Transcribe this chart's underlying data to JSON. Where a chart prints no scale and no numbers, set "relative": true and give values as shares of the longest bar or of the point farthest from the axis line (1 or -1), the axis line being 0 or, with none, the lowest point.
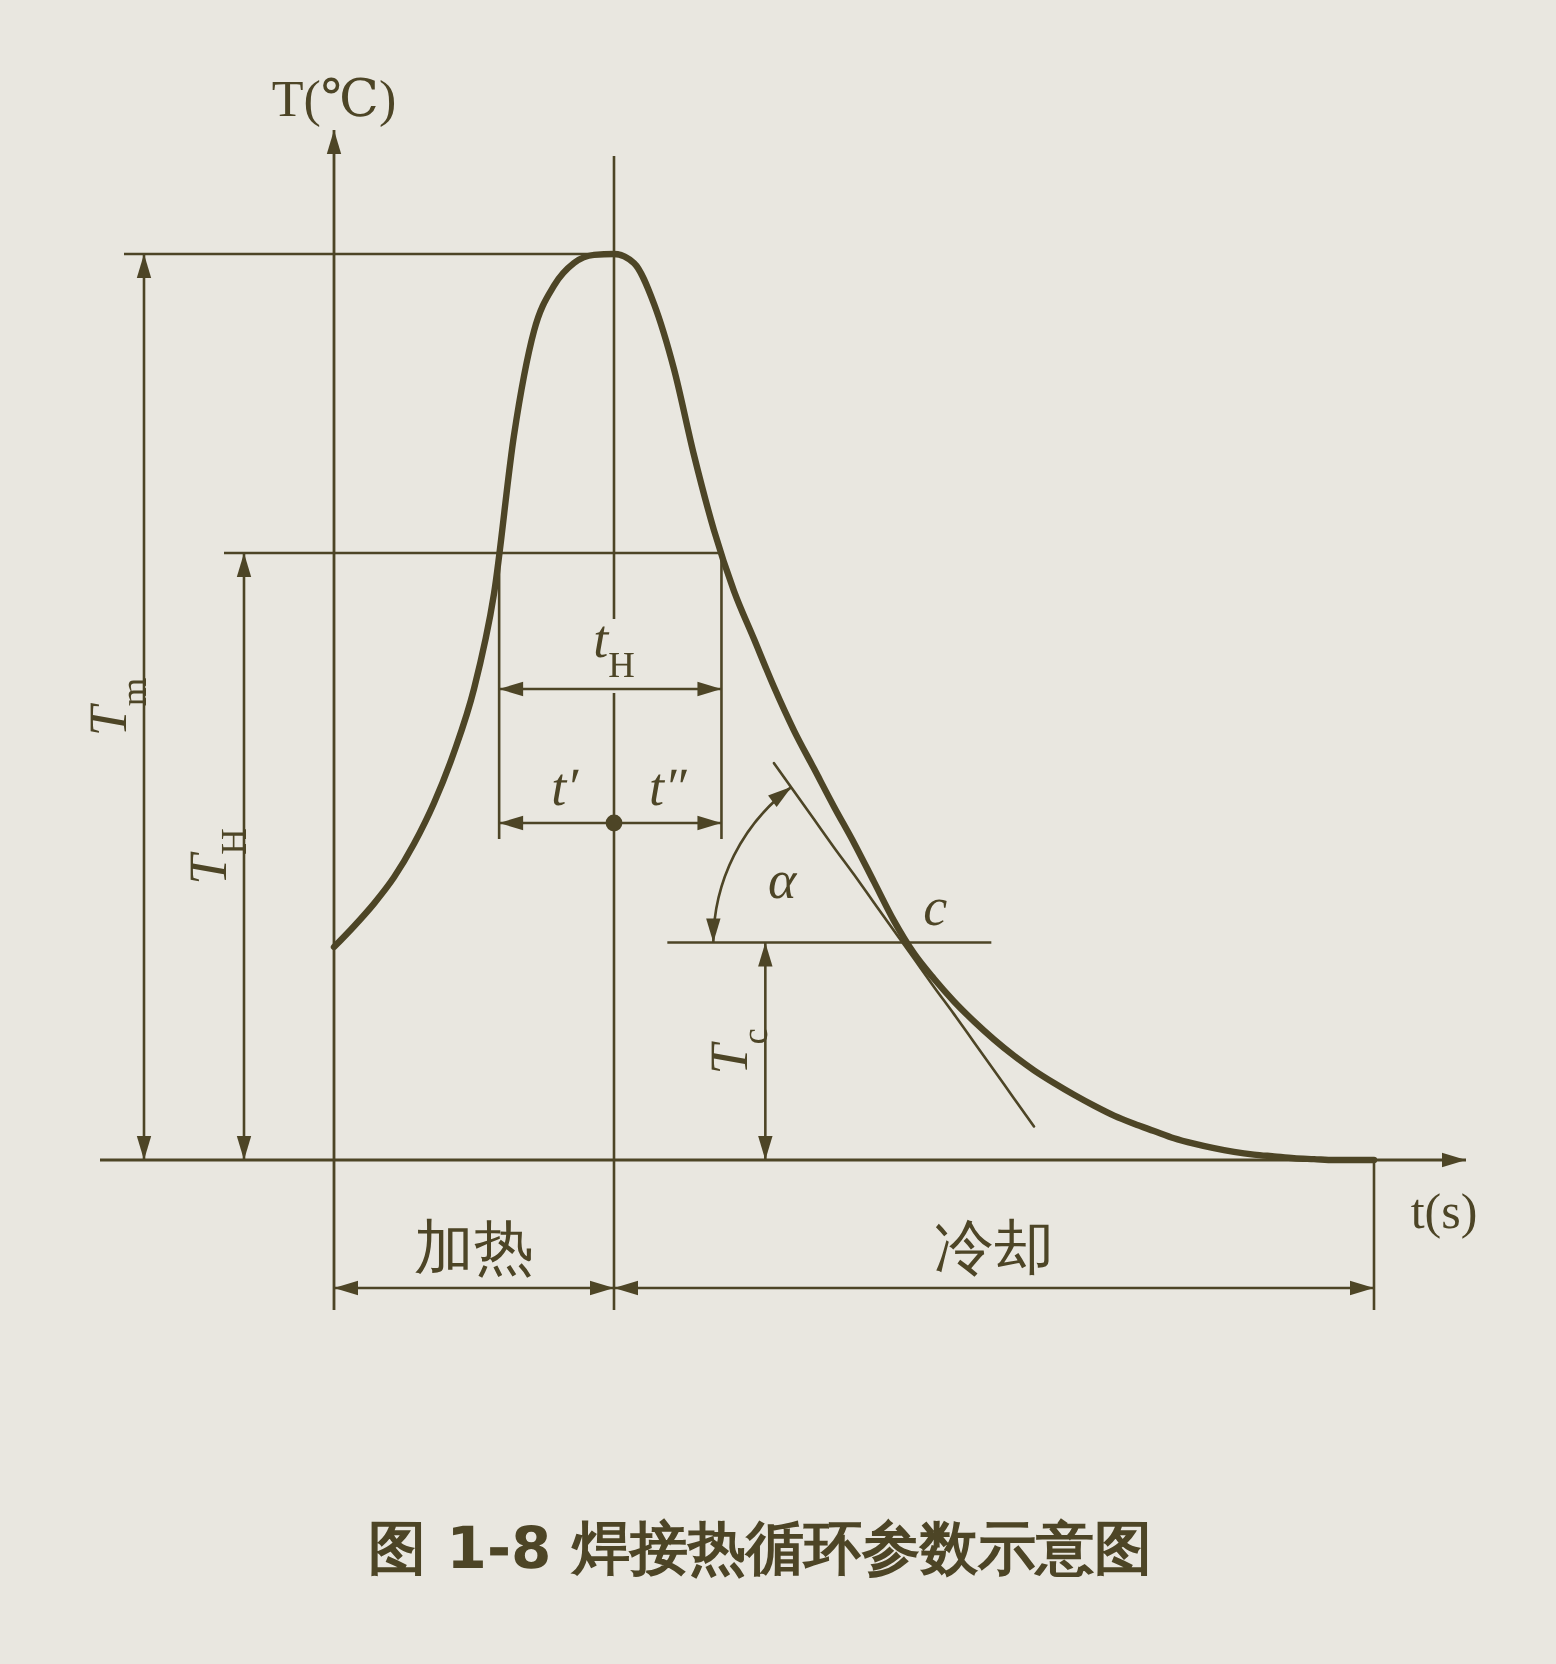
{
  "chart_data": {
    "type": "line",
    "relative": true,
    "title": "图 1-8 焊接热循环参数示意图",
    "xlabel": "t(s)",
    "ylabel": "T(℃)",
    "categories": [
      null,
      null,
      null,
      null,
      null,
      null,
      null,
      null,
      null,
      null,
      null,
      null,
      null,
      null,
      null,
      null,
      null,
      null,
      null,
      null,
      null,
      null,
      null,
      null,
      null,
      null,
      null,
      null,
      null,
      null,
      null,
      null,
      null,
      null,
      null,
      null,
      null,
      null,
      null,
      null,
      null,
      null,
      null,
      null,
      null,
      null,
      null,
      null,
      null,
      null,
      null,
      null,
      null
    ],
    "series": [
      {
        "color": "#4d4526",
        "values": [
          0.235,
          0.258,
          0.283,
          0.312,
          0.349,
          0.394,
          0.45,
          0.52,
          0.625,
          0.8,
          0.915,
          0.965,
          0.99,
          0.999,
          1,
          0.99,
          0.945,
          0.873,
          0.778,
          0.695,
          0.628,
          0.575,
          0.522,
          0.474,
          0.432,
          0.39,
          0.35,
          0.307,
          0.264,
          0.228,
          0.2,
          0.175,
          0.153,
          0.133,
          0.115,
          0.099,
          0.085,
          0.072,
          0.06,
          0.049,
          0.04,
          0.032,
          0.024,
          0.018,
          0.013,
          0.009,
          0.006,
          0.004,
          0.002,
          0.001,
          0,
          0,
          0
        ]
      },
      {
        "color": "#4d4526",
        "values": [
          null,
          null,
          null,
          null,
          null,
          null,
          null,
          null,
          null,
          null,
          null,
          null,
          null,
          null,
          null,
          null,
          null,
          null,
          null,
          null,
          null,
          null,
          0.438,
          0.407,
          0.376,
          0.345,
          0.315,
          0.284,
          0.253,
          0.222,
          0.191,
          0.161,
          0.13,
          0.099,
          0.068,
          0.037,
          null,
          null,
          null,
          null,
          null,
          null,
          null,
          null,
          null,
          null,
          null,
          null,
          null,
          null,
          null,
          null,
          null
        ]
      }
    ],
    "ref_lines": [
      {
        "axis": "y",
        "value": 1
      },
      {
        "axis": "y",
        "value": 0.67
      },
      {
        "axis": "y",
        "value": 0.24
      }
    ],
    "annotations": [
      "T$_{m}$",
      "T$_{H}$",
      "t$_{H}$",
      "t′",
      "t″",
      "α",
      "c",
      "T$_{c}$",
      "加热",
      "冷却"
    ]
  }
}
